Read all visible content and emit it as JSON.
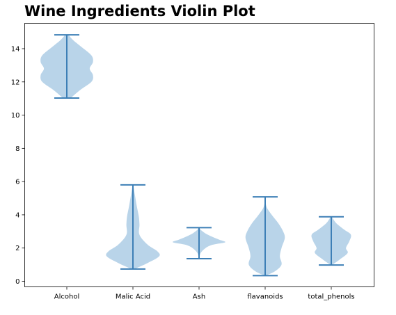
{
  "chart_data": {
    "type": "violin",
    "title": "Wine Ingredients Violin Plot",
    "xlabel": "",
    "ylabel": "",
    "categories": [
      "Alcohol",
      "Malic Acid",
      "Ash",
      "flavanoids",
      "total_phenols"
    ],
    "ylim": [
      -0.5,
      15.5
    ],
    "yticks": [
      0,
      2,
      4,
      6,
      8,
      10,
      12,
      14
    ],
    "grid": false,
    "body_color": "#b9d4e9",
    "line_color": "#3d7fb6",
    "violins": [
      {
        "category": "Alcohol",
        "min": 11.03,
        "max": 14.83,
        "density": [
          [
            11.03,
            0.12
          ],
          [
            11.5,
            0.4
          ],
          [
            12.0,
            0.75
          ],
          [
            12.4,
            0.8
          ],
          [
            12.8,
            0.7
          ],
          [
            13.2,
            0.8
          ],
          [
            13.6,
            0.75
          ],
          [
            14.1,
            0.45
          ],
          [
            14.5,
            0.2
          ],
          [
            14.83,
            0.05
          ]
        ]
      },
      {
        "category": "Malic Acid",
        "min": 0.74,
        "max": 5.8,
        "density": [
          [
            0.74,
            0.05
          ],
          [
            1.1,
            0.45
          ],
          [
            1.5,
            0.8
          ],
          [
            1.8,
            0.75
          ],
          [
            2.2,
            0.45
          ],
          [
            2.8,
            0.2
          ],
          [
            3.4,
            0.2
          ],
          [
            3.9,
            0.18
          ],
          [
            4.5,
            0.12
          ],
          [
            5.2,
            0.06
          ],
          [
            5.8,
            0.01
          ]
        ]
      },
      {
        "category": "Ash",
        "min": 1.36,
        "max": 3.23,
        "density": [
          [
            1.36,
            0.01
          ],
          [
            1.7,
            0.05
          ],
          [
            2.0,
            0.2
          ],
          [
            2.2,
            0.42
          ],
          [
            2.35,
            0.8
          ],
          [
            2.5,
            0.62
          ],
          [
            2.7,
            0.38
          ],
          [
            2.9,
            0.18
          ],
          [
            3.1,
            0.05
          ],
          [
            3.23,
            0.01
          ]
        ]
      },
      {
        "category": "flavanoids",
        "min": 0.34,
        "max": 5.08,
        "density": [
          [
            0.34,
            0.01
          ],
          [
            0.6,
            0.3
          ],
          [
            1.0,
            0.5
          ],
          [
            1.5,
            0.45
          ],
          [
            2.0,
            0.5
          ],
          [
            2.6,
            0.6
          ],
          [
            3.0,
            0.55
          ],
          [
            3.5,
            0.4
          ],
          [
            4.0,
            0.2
          ],
          [
            4.5,
            0.04
          ],
          [
            5.08,
            0.005
          ]
        ]
      },
      {
        "category": "total_phenols",
        "min": 0.98,
        "max": 3.88,
        "density": [
          [
            0.98,
            0.02
          ],
          [
            1.3,
            0.25
          ],
          [
            1.7,
            0.5
          ],
          [
            2.0,
            0.45
          ],
          [
            2.4,
            0.55
          ],
          [
            2.8,
            0.6
          ],
          [
            3.1,
            0.4
          ],
          [
            3.5,
            0.15
          ],
          [
            3.88,
            0.02
          ]
        ]
      }
    ]
  }
}
